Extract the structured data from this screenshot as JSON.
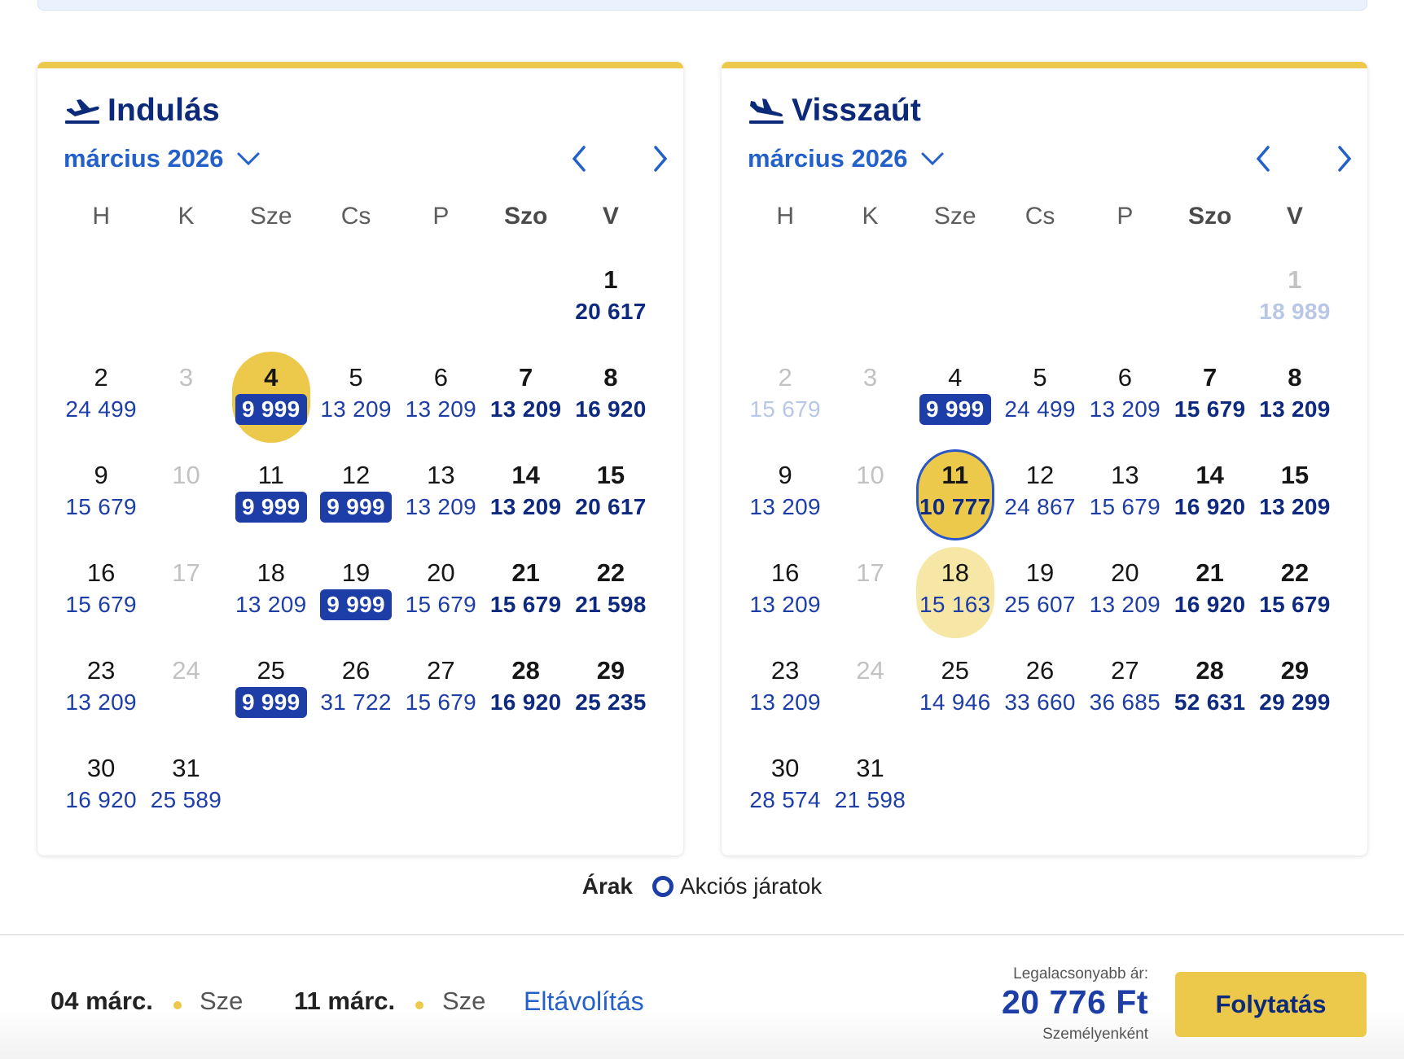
{
  "legend": {
    "label": "Árak",
    "item": "Akciós járatok"
  },
  "colors": {
    "brand_yellow": "#ecc94b",
    "brand_blue": "#1d3ea6",
    "navy": "#0c2a79"
  },
  "calendars": [
    {
      "id": "departure",
      "title": "Indulás",
      "icon": "plane-takeoff-icon",
      "month": "március 2026",
      "weekdays": [
        "H",
        "K",
        "Sze",
        "Cs",
        "P",
        "Szo",
        "V"
      ],
      "leading_blanks": 6,
      "days": [
        {
          "day": "1",
          "price": "20 617"
        },
        {
          "day": "2",
          "price": "24 499"
        },
        {
          "day": "3",
          "price": "",
          "disabled": true
        },
        {
          "day": "4",
          "price": "9 999",
          "promo": true,
          "selected": true
        },
        {
          "day": "5",
          "price": "13 209"
        },
        {
          "day": "6",
          "price": "13 209"
        },
        {
          "day": "7",
          "price": "13 209"
        },
        {
          "day": "8",
          "price": "16 920"
        },
        {
          "day": "9",
          "price": "15 679"
        },
        {
          "day": "10",
          "price": "",
          "disabled": true
        },
        {
          "day": "11",
          "price": "9 999",
          "promo": true
        },
        {
          "day": "12",
          "price": "9 999",
          "promo": true
        },
        {
          "day": "13",
          "price": "13 209"
        },
        {
          "day": "14",
          "price": "13 209"
        },
        {
          "day": "15",
          "price": "20 617"
        },
        {
          "day": "16",
          "price": "15 679"
        },
        {
          "day": "17",
          "price": "",
          "disabled": true
        },
        {
          "day": "18",
          "price": "13 209"
        },
        {
          "day": "19",
          "price": "9 999",
          "promo": true
        },
        {
          "day": "20",
          "price": "15 679"
        },
        {
          "day": "21",
          "price": "15 679"
        },
        {
          "day": "22",
          "price": "21 598"
        },
        {
          "day": "23",
          "price": "13 209"
        },
        {
          "day": "24",
          "price": "",
          "disabled": true
        },
        {
          "day": "25",
          "price": "9 999",
          "promo": true
        },
        {
          "day": "26",
          "price": "31 722"
        },
        {
          "day": "27",
          "price": "15 679"
        },
        {
          "day": "28",
          "price": "16 920"
        },
        {
          "day": "29",
          "price": "25 235"
        },
        {
          "day": "30",
          "price": "16 920"
        },
        {
          "day": "31",
          "price": "25 589"
        }
      ]
    },
    {
      "id": "return",
      "title": "Visszaút",
      "icon": "plane-landing-icon",
      "month": "március 2026",
      "weekdays": [
        "H",
        "K",
        "Sze",
        "Cs",
        "P",
        "Szo",
        "V"
      ],
      "leading_blanks": 6,
      "days": [
        {
          "day": "1",
          "price": "18 989",
          "disabled": true
        },
        {
          "day": "2",
          "price": "15 679",
          "disabled": true
        },
        {
          "day": "3",
          "price": "",
          "disabled": true
        },
        {
          "day": "4",
          "price": "9 999",
          "promo": true
        },
        {
          "day": "5",
          "price": "24 499"
        },
        {
          "day": "6",
          "price": "13 209"
        },
        {
          "day": "7",
          "price": "15 679"
        },
        {
          "day": "8",
          "price": "13 209"
        },
        {
          "day": "9",
          "price": "13 209"
        },
        {
          "day": "10",
          "price": "",
          "disabled": true
        },
        {
          "day": "11",
          "price": "10 777",
          "selected": true,
          "focused": true
        },
        {
          "day": "12",
          "price": "24 867"
        },
        {
          "day": "13",
          "price": "15 679"
        },
        {
          "day": "14",
          "price": "16 920"
        },
        {
          "day": "15",
          "price": "13 209"
        },
        {
          "day": "16",
          "price": "13 209"
        },
        {
          "day": "17",
          "price": "",
          "disabled": true
        },
        {
          "day": "18",
          "price": "15 163",
          "hover": true
        },
        {
          "day": "19",
          "price": "25 607"
        },
        {
          "day": "20",
          "price": "13 209"
        },
        {
          "day": "21",
          "price": "16 920"
        },
        {
          "day": "22",
          "price": "15 679"
        },
        {
          "day": "23",
          "price": "13 209"
        },
        {
          "day": "24",
          "price": "",
          "disabled": true
        },
        {
          "day": "25",
          "price": "14 946"
        },
        {
          "day": "26",
          "price": "33 660"
        },
        {
          "day": "27",
          "price": "36 685"
        },
        {
          "day": "28",
          "price": "52 631"
        },
        {
          "day": "29",
          "price": "29 299"
        },
        {
          "day": "30",
          "price": "28 574"
        },
        {
          "day": "31",
          "price": "21 598"
        }
      ]
    }
  ],
  "summary": {
    "outbound_date": "04 márc.",
    "outbound_weekday": "Sze",
    "return_date": "11 márc.",
    "return_weekday": "Sze",
    "remove_label": "Eltávolítás",
    "cheapest_label": "Legalacsonyabb ár:",
    "cheapest_price": "20 776 Ft",
    "per_person": "Személyenként",
    "continue_label": "Folytatás"
  }
}
